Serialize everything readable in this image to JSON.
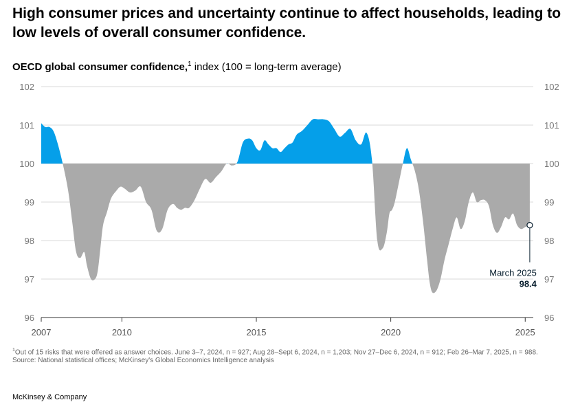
{
  "title": "High consumer prices and uncertainty continue to affect households, leading to low levels of overall consumer confidence.",
  "subtitle": {
    "bold": "OECD global consumer confidence,",
    "sup": "1",
    "rest": " index (100 = long-term average)"
  },
  "footnote": {
    "sup": "1",
    "text": "Out of 15 risks that were offered as answer choices. June 3–7, 2024, n = 927; Aug 28–Sept 6, 2024, n = 1,203; Nov 27–Dec 6, 2024, n = 912; Feb 26–Mar 7, 2025, n = 988."
  },
  "source": "Source: National statistical offices; McKinsey's Global Economics Intelligence analysis",
  "brand": "McKinsey & Company",
  "colors": {
    "above": "#059fe9",
    "below": "#aaaaaa",
    "grid": "#d9d9d9",
    "axis": "#333333"
  },
  "chart_data": {
    "type": "area",
    "baseline": 100,
    "ylim": [
      96,
      102
    ],
    "yticks": [
      96,
      97,
      98,
      99,
      100,
      101,
      102
    ],
    "ytick_labels": [
      "96",
      "97",
      "98",
      "99",
      "100",
      "101",
      "102"
    ],
    "xlim": [
      2007,
      2025.3
    ],
    "xticks": [
      2007,
      2010,
      2015,
      2020,
      2025
    ],
    "xtick_labels": [
      "2007",
      "2010",
      "2015",
      "2020",
      "2025"
    ],
    "annotation": {
      "label": "March 2025",
      "value": "98.4",
      "x": 2025.17,
      "y": 98.4
    },
    "x": [
      2007.0,
      2007.15,
      2007.3,
      2007.45,
      2007.6,
      2007.8,
      2008.0,
      2008.15,
      2008.3,
      2008.45,
      2008.6,
      2008.7,
      2008.85,
      2009.0,
      2009.1,
      2009.2,
      2009.3,
      2009.45,
      2009.6,
      2009.8,
      2009.95,
      2010.1,
      2010.3,
      2010.5,
      2010.7,
      2010.9,
      2011.1,
      2011.3,
      2011.5,
      2011.7,
      2011.9,
      2012.05,
      2012.2,
      2012.35,
      2012.5,
      2012.7,
      2012.9,
      2013.1,
      2013.3,
      2013.5,
      2013.7,
      2013.9,
      2014.1,
      2014.3,
      2014.5,
      2014.7,
      2014.85,
      2015.0,
      2015.15,
      2015.3,
      2015.45,
      2015.6,
      2015.75,
      2015.9,
      2016.05,
      2016.2,
      2016.35,
      2016.5,
      2016.7,
      2016.9,
      2017.1,
      2017.3,
      2017.5,
      2017.7,
      2017.9,
      2018.1,
      2018.3,
      2018.5,
      2018.7,
      2018.9,
      2019.1,
      2019.3,
      2019.5,
      2019.7,
      2019.85,
      2019.95,
      2020.05,
      2020.15,
      2020.3,
      2020.45,
      2020.6,
      2020.75,
      2020.9,
      2021.05,
      2021.2,
      2021.35,
      2021.45,
      2021.55,
      2021.7,
      2021.85,
      2022.0,
      2022.15,
      2022.3,
      2022.45,
      2022.6,
      2022.75,
      2022.9,
      2023.05,
      2023.2,
      2023.35,
      2023.5,
      2023.65,
      2023.8,
      2023.95,
      2024.1,
      2024.25,
      2024.4,
      2024.55,
      2024.7,
      2024.85,
      2025.0,
      2025.17
    ],
    "y": [
      101.05,
      100.95,
      100.95,
      100.85,
      100.55,
      100.0,
      99.3,
      98.5,
      97.7,
      97.55,
      97.7,
      97.35,
      97.0,
      97.0,
      97.2,
      97.8,
      98.4,
      98.75,
      99.1,
      99.3,
      99.4,
      99.35,
      99.25,
      99.3,
      99.4,
      99.0,
      98.8,
      98.25,
      98.3,
      98.8,
      98.95,
      98.85,
      98.8,
      98.85,
      98.85,
      99.05,
      99.35,
      99.6,
      99.5,
      99.65,
      99.8,
      100.0,
      99.95,
      100.05,
      100.55,
      100.65,
      100.6,
      100.4,
      100.35,
      100.6,
      100.5,
      100.4,
      100.4,
      100.3,
      100.4,
      100.5,
      100.55,
      100.75,
      100.85,
      101.0,
      101.15,
      101.15,
      101.15,
      101.1,
      100.9,
      100.7,
      100.8,
      100.9,
      100.6,
      100.5,
      100.8,
      100.1,
      98.0,
      97.8,
      98.2,
      98.7,
      98.8,
      99.0,
      99.5,
      100.0,
      100.4,
      100.1,
      99.8,
      99.3,
      98.5,
      97.5,
      96.9,
      96.65,
      96.7,
      97.0,
      97.5,
      97.9,
      98.3,
      98.6,
      98.3,
      98.5,
      99.0,
      99.25,
      99.0,
      99.05,
      99.05,
      98.9,
      98.4,
      98.2,
      98.35,
      98.6,
      98.55,
      98.7,
      98.4,
      98.3,
      98.35,
      98.4
    ]
  }
}
